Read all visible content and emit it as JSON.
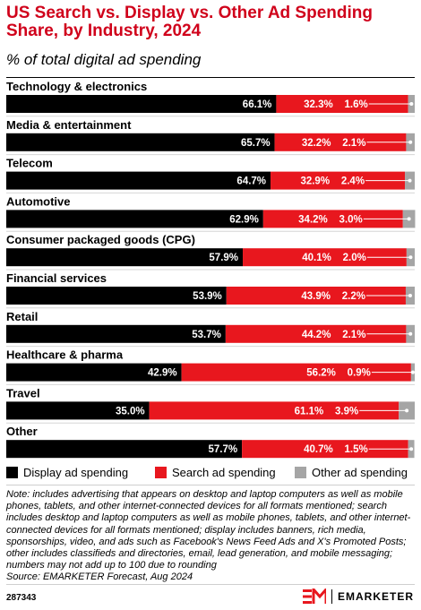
{
  "header": {
    "title": "US Search vs. Display vs. Other Ad Spending Share, by Industry, 2024",
    "subtitle": "% of total digital ad spending"
  },
  "chart_data": {
    "type": "bar",
    "orientation": "horizontal",
    "stacked": true,
    "categories": [
      "Technology & electronics",
      "Media & entertainment",
      "Telecom",
      "Automotive",
      "Consumer packaged goods (CPG)",
      "Financial services",
      "Retail",
      "Healthcare & pharma",
      "Travel",
      "Other"
    ],
    "series": [
      {
        "name": "Display ad spending",
        "color": "#000000",
        "values": [
          66.1,
          65.7,
          64.7,
          62.9,
          57.9,
          53.9,
          53.7,
          42.9,
          35.0,
          57.7
        ],
        "labels": [
          "66.1%",
          "65.7%",
          "64.7%",
          "62.9%",
          "57.9%",
          "53.9%",
          "53.7%",
          "42.9%",
          "35.0%",
          "57.7%"
        ]
      },
      {
        "name": "Search ad spending",
        "color": "#e8171e",
        "values": [
          32.3,
          32.2,
          32.9,
          34.2,
          40.1,
          43.9,
          44.2,
          56.2,
          61.1,
          40.7
        ],
        "labels": [
          "32.3%",
          "32.2%",
          "32.9%",
          "34.2%",
          "40.1%",
          "43.9%",
          "44.2%",
          "56.2%",
          "61.1%",
          "40.7%"
        ]
      },
      {
        "name": "Other ad spending",
        "color": "#a5a5a5",
        "values": [
          1.6,
          2.1,
          2.4,
          3.0,
          2.0,
          2.2,
          2.1,
          0.9,
          3.9,
          1.5
        ],
        "labels": [
          "1.6%",
          "2.1%",
          "2.4%",
          "3.0%",
          "2.0%",
          "2.2%",
          "2.1%",
          "0.9%",
          "3.9%",
          "1.5%"
        ]
      }
    ],
    "xlim": [
      0,
      100
    ],
    "grid": false,
    "legend_position": "bottom"
  },
  "note": "Note: includes advertising that appears on desktop and laptop computers as well as mobile phones, tablets, and other internet-connected devices for all formats mentioned; search includes desktop and laptop computers as well as mobile phones, tablets, and other internet-connected devices for all formats mentioned; display includes banners, rich media, sponsorships, video, and ads such as Facebook's News Feed Ads and X's Promoted Posts; other includes classifieds and directories, email, lead generation, and mobile messaging; numbers may not add up to 100 due to rounding",
  "source": "Source: EMARKETER Forecast, Aug 2024",
  "footer": {
    "chart_id": "287343",
    "brand_name": "EMARKETER",
    "logo_icon": "em-logo-icon"
  }
}
